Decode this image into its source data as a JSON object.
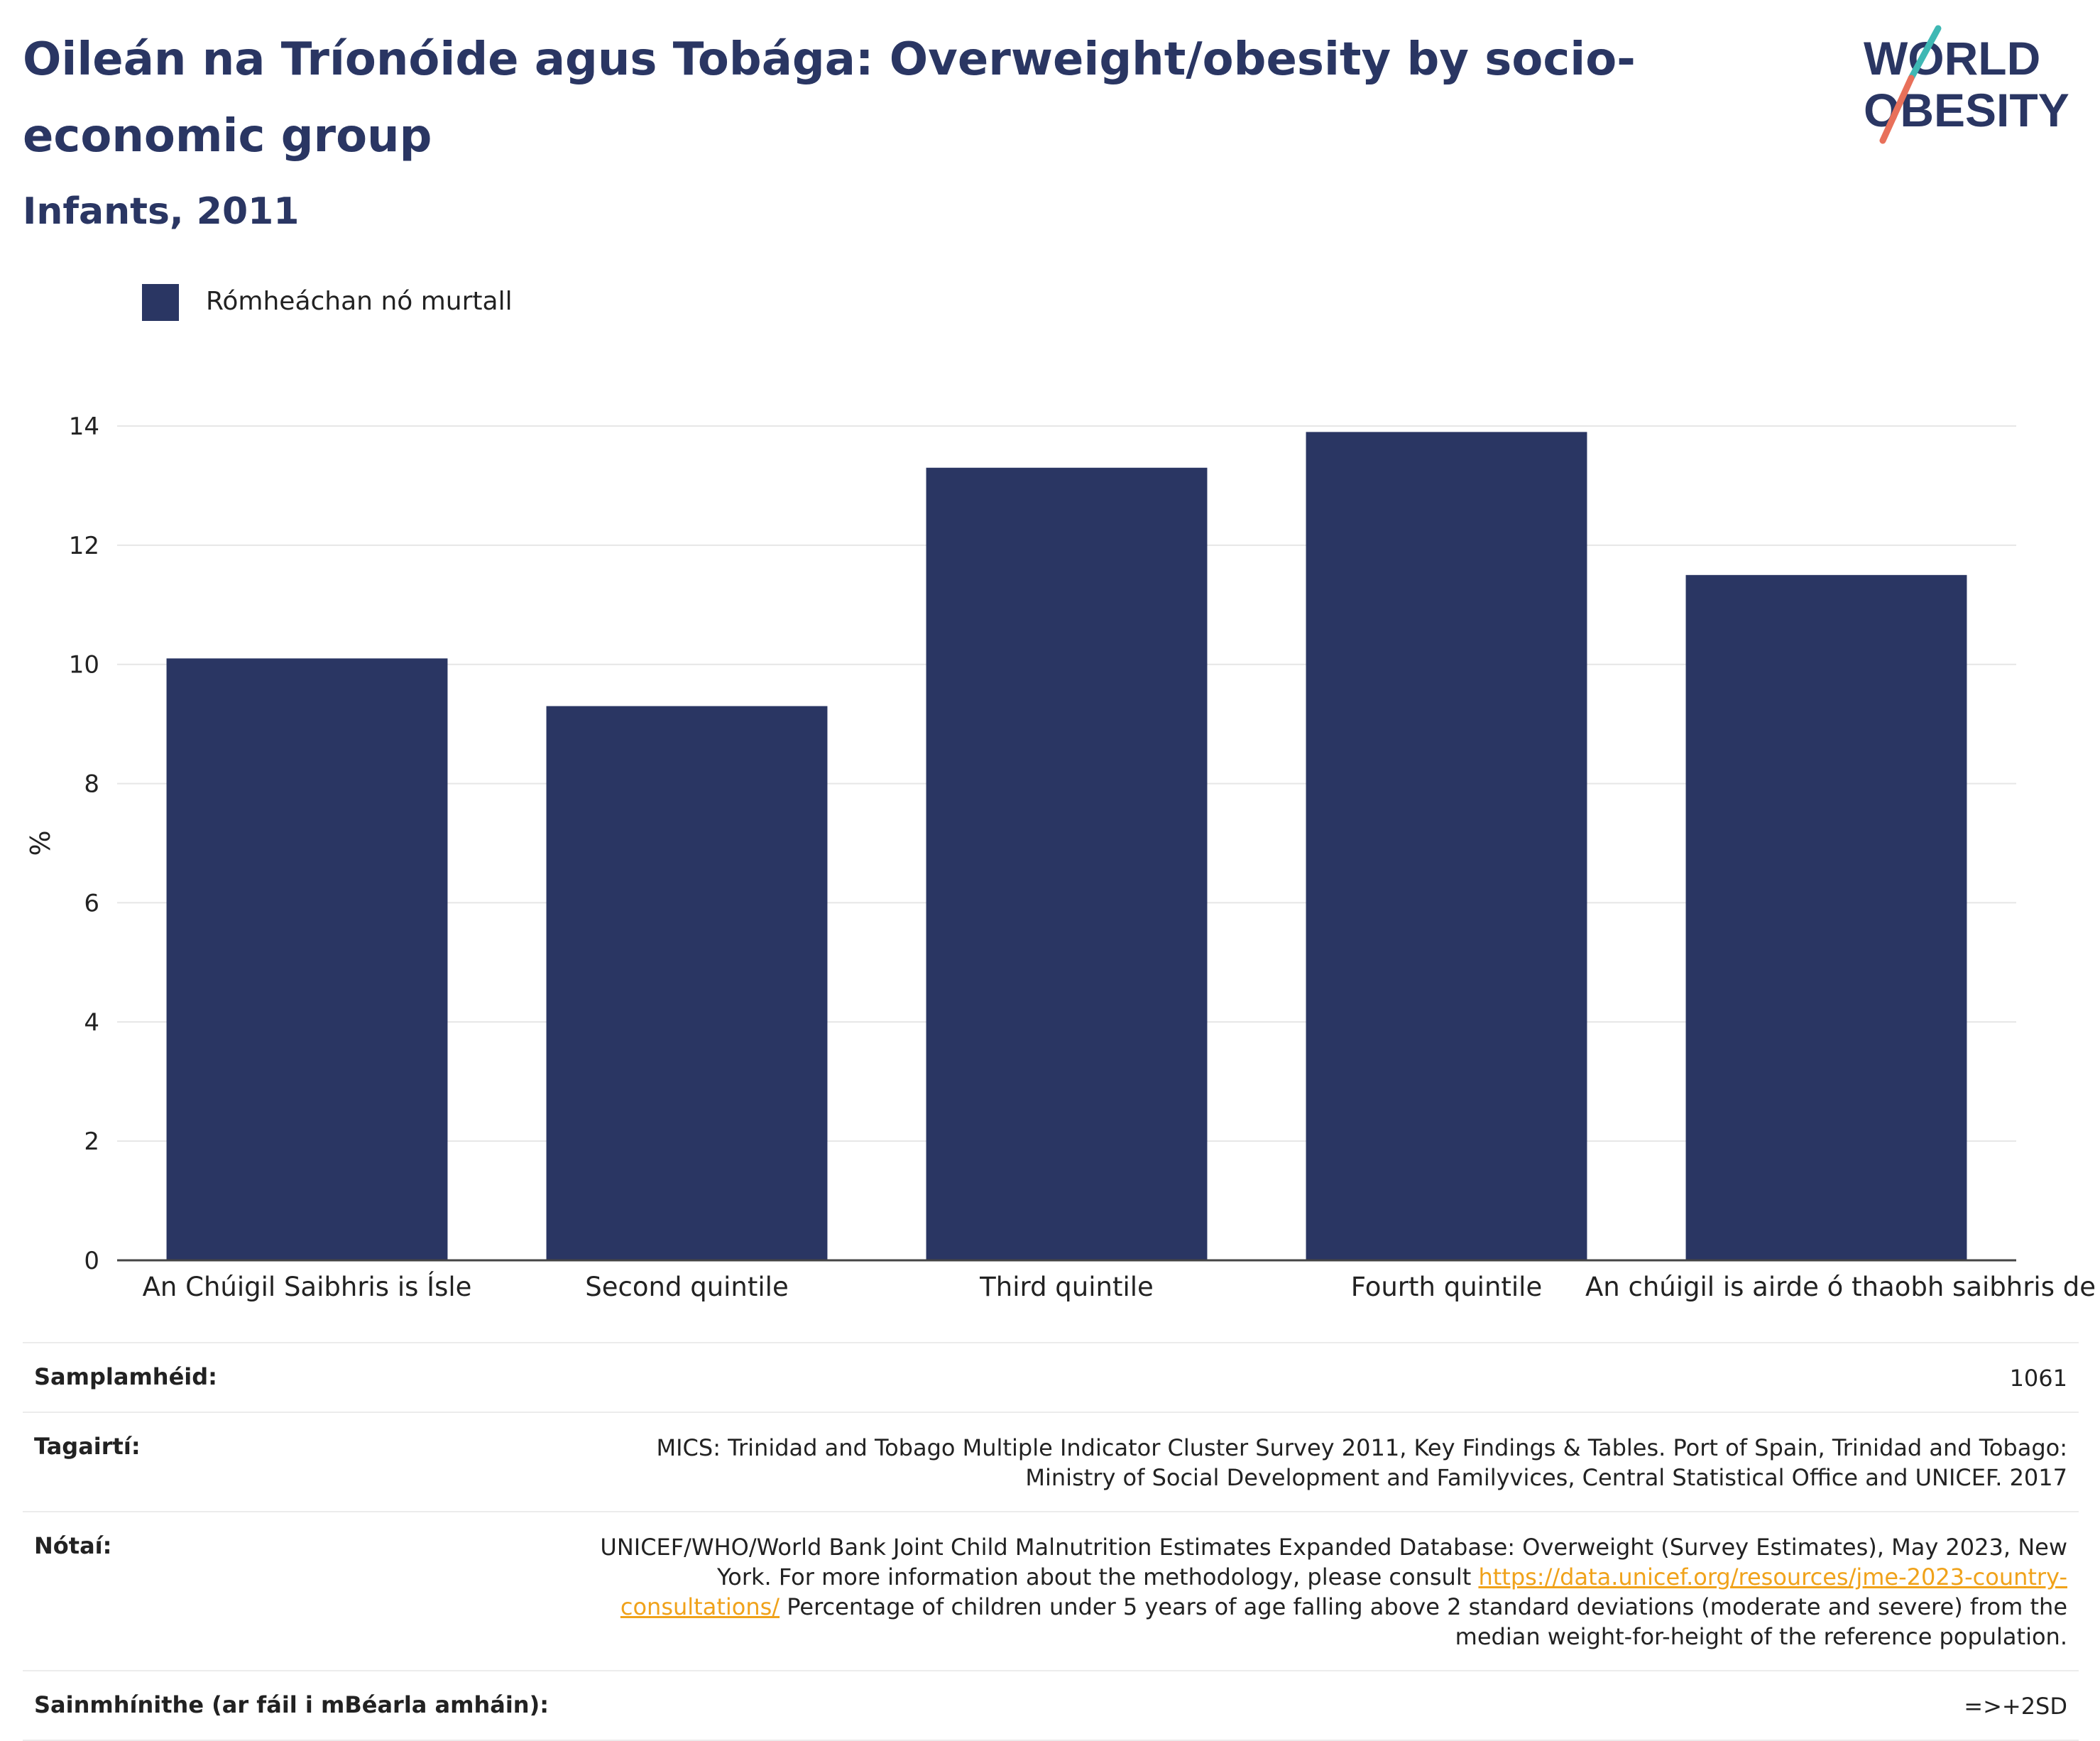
{
  "header": {
    "title": "Oileán na Tríonóide agus Tobága: Overweight/obesity by socio-economic group",
    "subtitle": "Infants, 2011",
    "logo_line1": "WORLD",
    "logo_line2": "OBESITY"
  },
  "colors": {
    "bar": "#2a3663",
    "title": "#2a3663",
    "link": "#f0a21a",
    "logo_teal": "#3fb8b4",
    "logo_coral": "#e8705a"
  },
  "chart_data": {
    "type": "bar",
    "categories": [
      "An Chúigil Saibhris is Ísle",
      "Second quintile",
      "Third quintile",
      "Fourth quintile",
      "An chúigil is airde ó thaobh saibhris de"
    ],
    "series": [
      {
        "name": "Rómheáchan nó murtall",
        "values": [
          10.1,
          9.3,
          13.3,
          13.9,
          11.5
        ]
      }
    ],
    "xlabel": "",
    "ylabel": "%",
    "ylim": [
      0,
      14
    ],
    "yticks": [
      0,
      2,
      4,
      6,
      8,
      10,
      12,
      14
    ],
    "grid": true,
    "legend_position": "top-left"
  },
  "info_table": {
    "sample_size": {
      "label": "Samplamhéid:",
      "value": "1061"
    },
    "references": {
      "label": "Tagairtí:",
      "value": "MICS: Trinidad and Tobago Multiple Indicator Cluster Survey 2011, Key Findings & Tables. Port of Spain, Trinidad and Tobago: Ministry of Social Development and Familyvices, Central Statistical Office and UNICEF. 2017"
    },
    "notes": {
      "label": "Nótaí:",
      "text_before_link": "UNICEF/WHO/World Bank Joint Child Malnutrition Estimates Expanded Database: Overweight (Survey Estimates), May 2023, New York. For more information about the methodology, please consult ",
      "link": "https://data.unicef.org/resources/jme-2023-country-consultations/",
      "text_after_link": " Percentage of children under 5 years of age falling above 2 standard deviations (moderate and severe) from the median weight-for-height of the reference population."
    },
    "definitions": {
      "label": "Sainmhínithe (ar fáil i mBéarla amháin):",
      "value": "=>+2SD"
    }
  }
}
